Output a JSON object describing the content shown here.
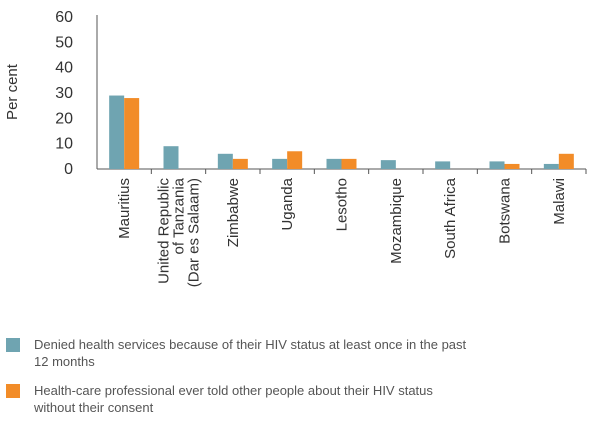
{
  "chart_data": {
    "type": "bar",
    "ylabel": "Per cent",
    "xlabel": "",
    "ylim": [
      0,
      60
    ],
    "yticks": [
      0,
      10,
      20,
      30,
      40,
      50,
      60
    ],
    "categories": [
      [
        "Mauritius"
      ],
      [
        "United Republic",
        "of Tanzania",
        "(Dar es Salaam)"
      ],
      [
        "Zimbabwe"
      ],
      [
        "Uganda"
      ],
      [
        "Lesotho"
      ],
      [
        "Mozambique"
      ],
      [
        "South Africa"
      ],
      [
        "Botswana"
      ],
      [
        "Malawi"
      ]
    ],
    "series": [
      {
        "name": "Denied health services because of their HIV status at least once in the past 12 months",
        "color": "#6fa4b1",
        "values": [
          29,
          9,
          6,
          4,
          4,
          3.5,
          3,
          3,
          2
        ]
      },
      {
        "name": "Health-care professional ever told other people about their HIV status without their consent",
        "color": "#f28c28",
        "values": [
          28,
          null,
          4,
          7,
          4,
          null,
          null,
          2,
          6
        ]
      }
    ],
    "grid": false,
    "legend_position": "bottom-left"
  }
}
